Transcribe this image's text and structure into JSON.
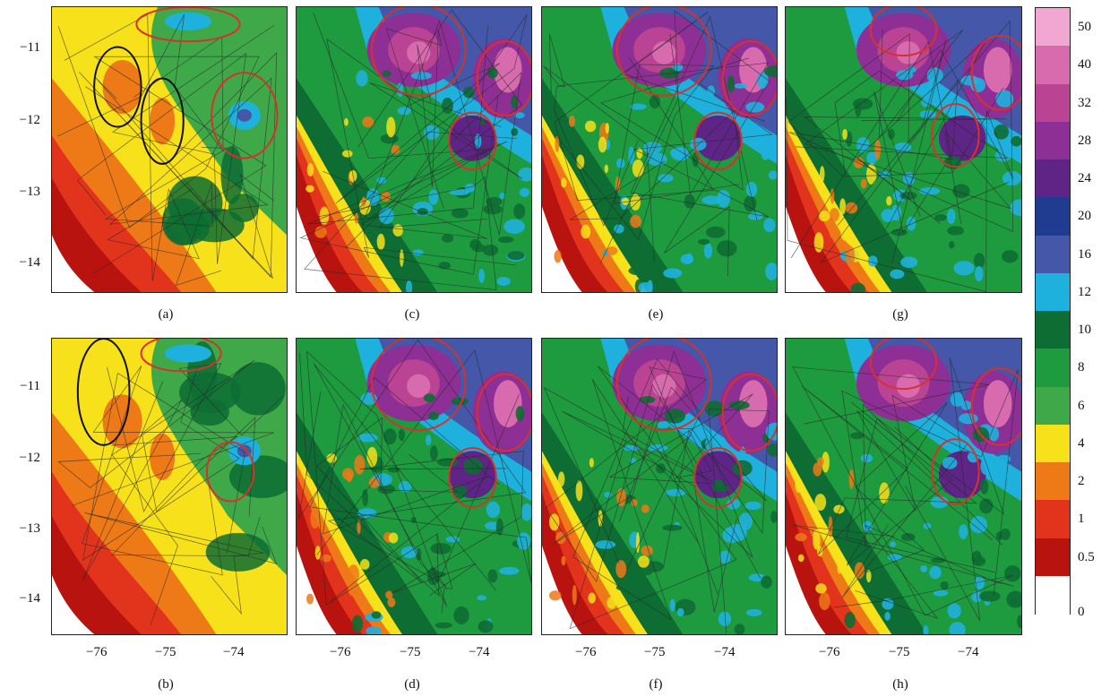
{
  "panels": [
    {
      "label": "(a)",
      "kind": "coarse",
      "seed": 3
    },
    {
      "label": "(c)",
      "kind": "fine",
      "seed": 11
    },
    {
      "label": "(e)",
      "kind": "fine",
      "seed": 17
    },
    {
      "label": "(g)",
      "kind": "fine",
      "seed": 23
    },
    {
      "label": "(b)",
      "kind": "coarse",
      "seed": 5
    },
    {
      "label": "(d)",
      "kind": "fine",
      "seed": 29
    },
    {
      "label": "(f)",
      "kind": "fine",
      "seed": 31
    },
    {
      "label": "(h)",
      "kind": "fine",
      "seed": 37
    }
  ],
  "y_ticks": [
    "−11",
    "−12",
    "−13",
    "−14"
  ],
  "x_ticks": [
    "−76",
    "−75",
    "−74"
  ],
  "colorbar": {
    "labels": [
      "50",
      "40",
      "32",
      "28",
      "24",
      "20",
      "16",
      "12",
      "10",
      "8",
      "6",
      "4",
      "2",
      "1",
      "0.5",
      "0"
    ],
    "colors": [
      "#f2a7d3",
      "#d86aae",
      "#bb4394",
      "#8e2f96",
      "#5e2486",
      "#203c91",
      "#4457a8",
      "#1fb1dd",
      "#0d6d32",
      "#1e9a3f",
      "#3fa94a",
      "#f7e11a",
      "#ee7917",
      "#e2341c",
      "#b8130f",
      "#ffffff"
    ]
  },
  "colors": {
    "red_circle": "#d9302b",
    "black_circle": "#111111",
    "border": "#2a2a2a"
  }
}
